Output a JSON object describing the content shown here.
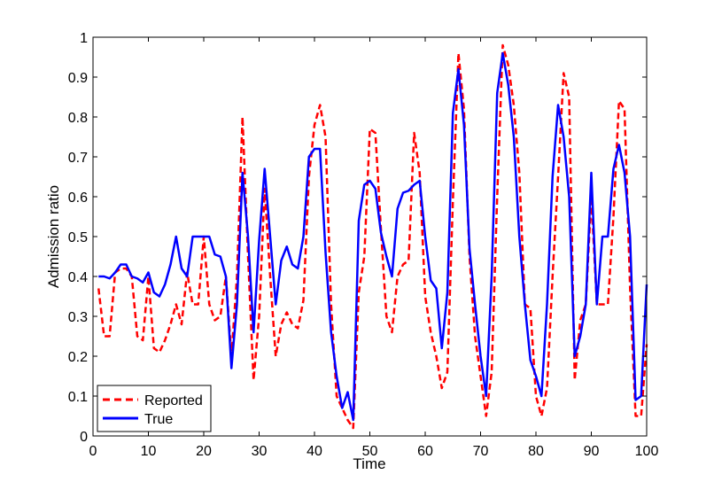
{
  "chart_data": {
    "type": "line",
    "title": "",
    "xlabel": "Time",
    "ylabel": "Admission ratio",
    "xlim": [
      0,
      100
    ],
    "ylim": [
      0,
      1
    ],
    "xticks": [
      0,
      10,
      20,
      30,
      40,
      50,
      60,
      70,
      80,
      90,
      100
    ],
    "yticks": [
      0,
      0.1,
      0.2,
      0.3,
      0.4,
      0.5,
      0.6,
      0.7,
      0.8,
      0.9,
      1
    ],
    "ytick_labels": [
      "0",
      "0.1",
      "0.2",
      "0.3",
      "0.4",
      "0.5",
      "0.6",
      "0.7",
      "0.8",
      "0.9",
      "1"
    ],
    "grid": false,
    "legend": "bottom-left",
    "series": [
      {
        "name": "Reported",
        "color": "#ff0000",
        "style": "dashed",
        "x": [
          1,
          2,
          3,
          4,
          5,
          6,
          7,
          8,
          9,
          10,
          11,
          12,
          13,
          14,
          15,
          16,
          17,
          18,
          19,
          20,
          21,
          22,
          23,
          24,
          25,
          26,
          27,
          28,
          29,
          30,
          31,
          32,
          33,
          34,
          35,
          36,
          37,
          38,
          39,
          40,
          41,
          42,
          43,
          44,
          45,
          46,
          47,
          48,
          49,
          50,
          51,
          52,
          53,
          54,
          55,
          56,
          57,
          58,
          59,
          60,
          61,
          62,
          63,
          64,
          65,
          66,
          67,
          68,
          69,
          70,
          71,
          72,
          73,
          74,
          75,
          76,
          77,
          78,
          79,
          80,
          81,
          82,
          83,
          84,
          85,
          86,
          87,
          88,
          89,
          90,
          91,
          92,
          93,
          94,
          95,
          96,
          97,
          98,
          99,
          100
        ],
        "values": [
          0.37,
          0.25,
          0.25,
          0.41,
          0.42,
          0.42,
          0.4,
          0.25,
          0.24,
          0.4,
          0.22,
          0.21,
          0.24,
          0.28,
          0.33,
          0.28,
          0.41,
          0.33,
          0.33,
          0.5,
          0.33,
          0.29,
          0.3,
          0.4,
          0.2,
          0.4,
          0.8,
          0.45,
          0.14,
          0.3,
          0.62,
          0.4,
          0.2,
          0.28,
          0.31,
          0.28,
          0.27,
          0.34,
          0.65,
          0.78,
          0.83,
          0.75,
          0.33,
          0.1,
          0.07,
          0.04,
          0.02,
          0.36,
          0.45,
          0.77,
          0.76,
          0.52,
          0.3,
          0.26,
          0.4,
          0.43,
          0.44,
          0.76,
          0.66,
          0.35,
          0.26,
          0.2,
          0.12,
          0.16,
          0.59,
          0.96,
          0.82,
          0.45,
          0.25,
          0.15,
          0.05,
          0.16,
          0.6,
          0.98,
          0.93,
          0.83,
          0.66,
          0.33,
          0.32,
          0.1,
          0.05,
          0.12,
          0.4,
          0.65,
          0.91,
          0.85,
          0.14,
          0.29,
          0.33,
          0.6,
          0.33,
          0.33,
          0.33,
          0.55,
          0.84,
          0.82,
          0.37,
          0.05,
          0.05,
          0.23
        ]
      },
      {
        "name": "True",
        "color": "#0000ff",
        "style": "solid",
        "x": [
          1,
          2,
          3,
          4,
          5,
          6,
          7,
          8,
          9,
          10,
          11,
          12,
          13,
          14,
          15,
          16,
          17,
          18,
          19,
          20,
          21,
          22,
          23,
          24,
          25,
          26,
          27,
          28,
          29,
          30,
          31,
          32,
          33,
          34,
          35,
          36,
          37,
          38,
          39,
          40,
          41,
          42,
          43,
          44,
          45,
          46,
          47,
          48,
          49,
          50,
          51,
          52,
          53,
          54,
          55,
          56,
          57,
          58,
          59,
          60,
          61,
          62,
          63,
          64,
          65,
          66,
          67,
          68,
          69,
          70,
          71,
          72,
          73,
          74,
          75,
          76,
          77,
          78,
          79,
          80,
          81,
          82,
          83,
          84,
          85,
          86,
          87,
          88,
          89,
          90,
          91,
          92,
          93,
          94,
          95,
          96,
          97,
          98,
          99,
          100
        ],
        "values": [
          0.4,
          0.4,
          0.395,
          0.41,
          0.43,
          0.43,
          0.4,
          0.395,
          0.385,
          0.41,
          0.36,
          0.35,
          0.38,
          0.43,
          0.5,
          0.42,
          0.4,
          0.5,
          0.5,
          0.5,
          0.5,
          0.455,
          0.45,
          0.4,
          0.17,
          0.33,
          0.66,
          0.5,
          0.26,
          0.49,
          0.67,
          0.5,
          0.33,
          0.44,
          0.475,
          0.43,
          0.42,
          0.5,
          0.7,
          0.72,
          0.72,
          0.46,
          0.26,
          0.15,
          0.07,
          0.11,
          0.04,
          0.54,
          0.63,
          0.64,
          0.62,
          0.51,
          0.45,
          0.4,
          0.57,
          0.61,
          0.615,
          0.63,
          0.64,
          0.5,
          0.39,
          0.37,
          0.22,
          0.36,
          0.81,
          0.92,
          0.78,
          0.47,
          0.33,
          0.2,
          0.1,
          0.4,
          0.86,
          0.96,
          0.88,
          0.75,
          0.5,
          0.33,
          0.19,
          0.15,
          0.1,
          0.33,
          0.65,
          0.83,
          0.75,
          0.6,
          0.2,
          0.25,
          0.33,
          0.66,
          0.33,
          0.5,
          0.5,
          0.67,
          0.73,
          0.66,
          0.5,
          0.09,
          0.1,
          0.38
        ]
      }
    ]
  }
}
